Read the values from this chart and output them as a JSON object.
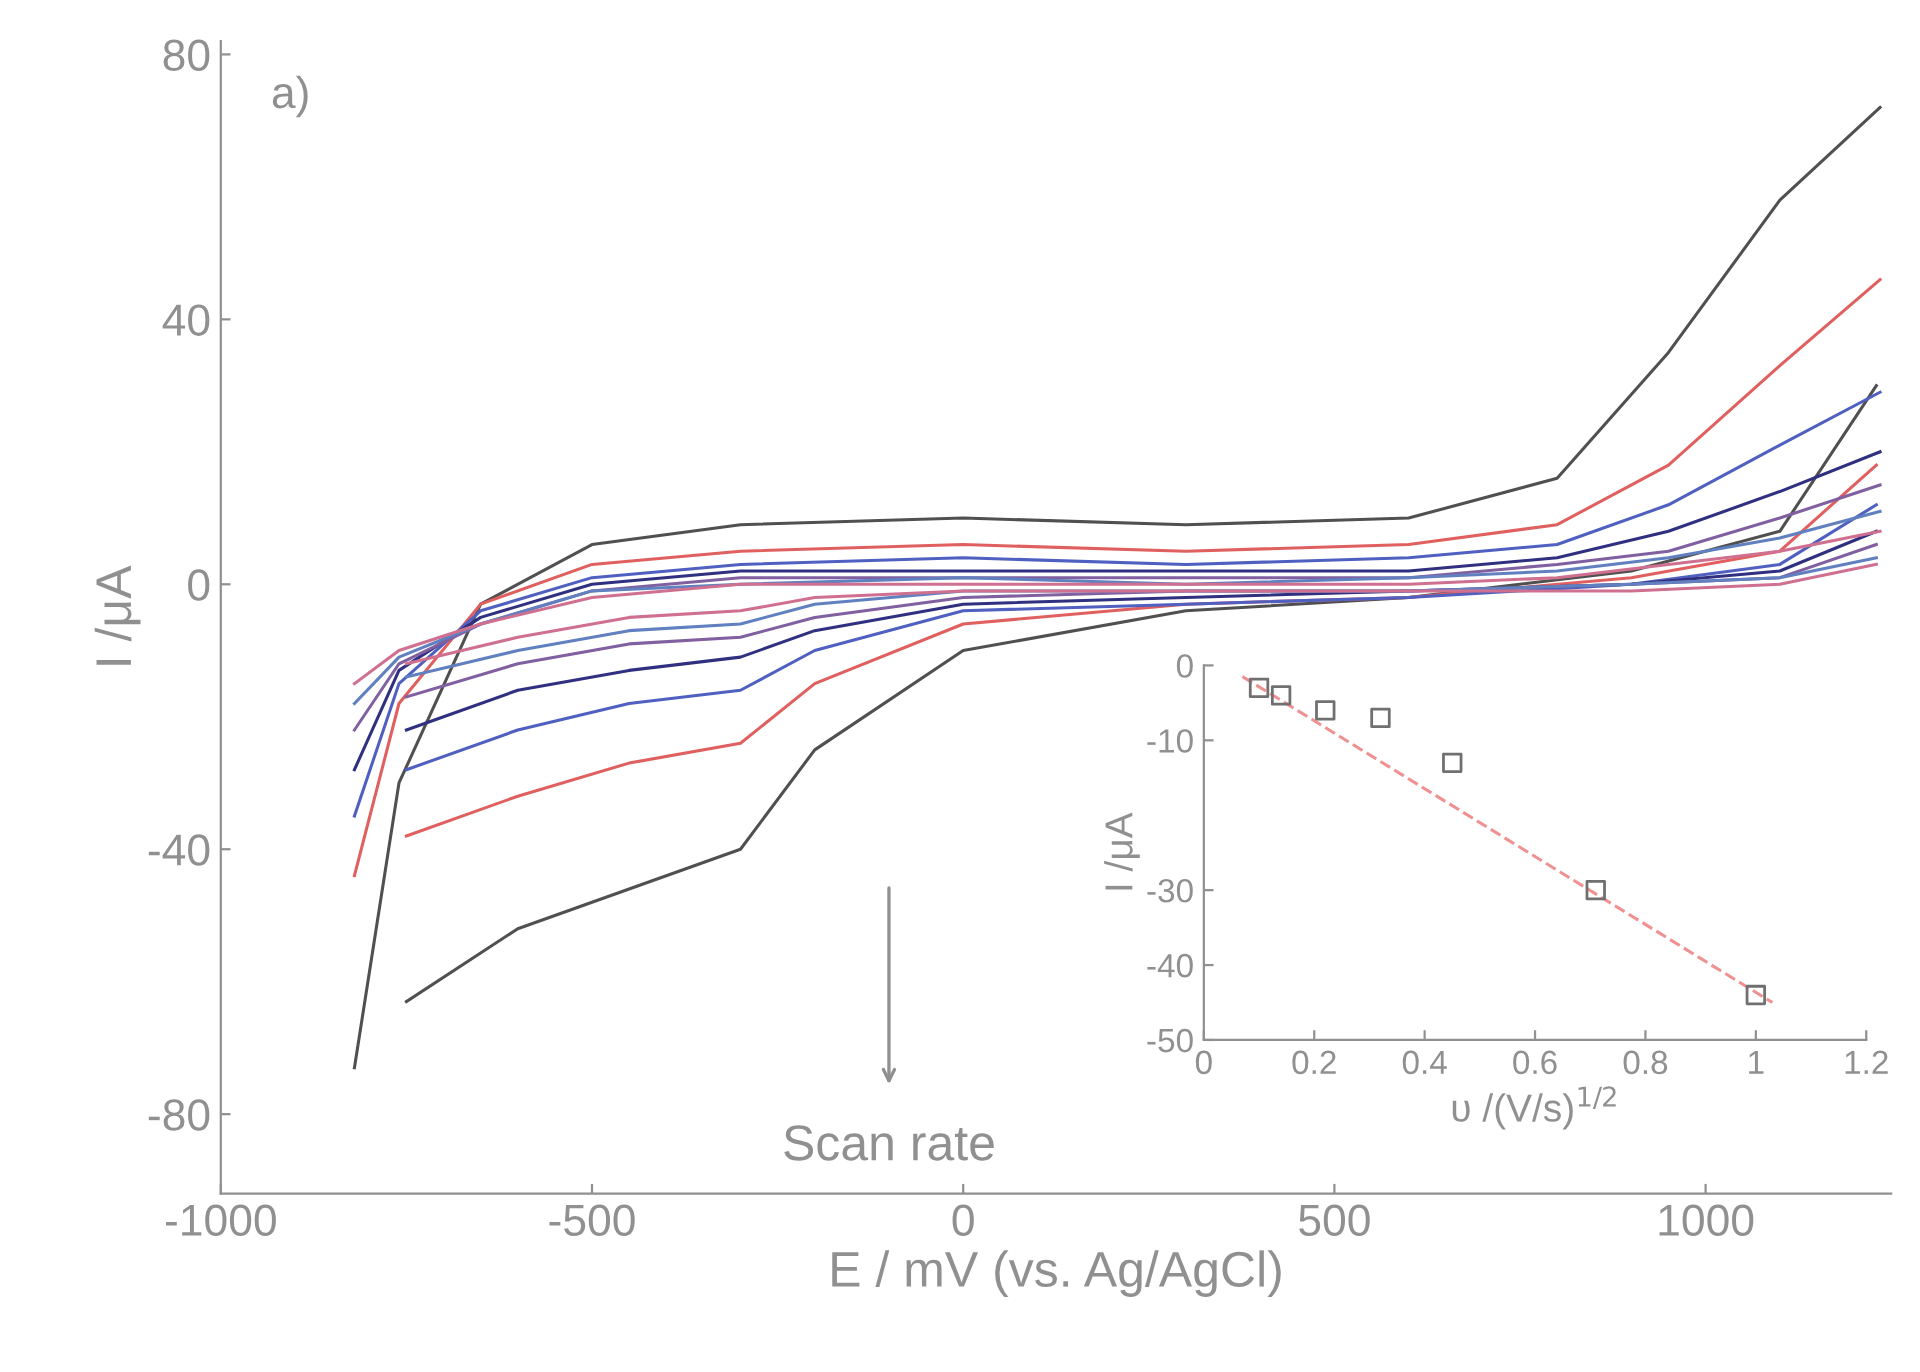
{
  "chart_data": [
    {
      "type": "line",
      "xlabel": "E / mV (vs. Ag/AgCl)",
      "ylabel": "I /μA",
      "series": [
        {
          "color": "#505050",
          "x": [
            -820,
            -760,
            -650,
            -500,
            -300,
            0,
            300,
            600,
            800,
            950,
            1100,
            1235
          ],
          "values": [
            -73,
            -30,
            -3,
            6,
            9,
            10,
            9,
            10,
            16,
            35,
            58,
            72
          ]
        },
        {
          "color": "#505050",
          "x": [
            -750,
            -600,
            -450,
            -300,
            -200,
            0,
            300,
            600,
            900,
            1100,
            1230
          ],
          "values": [
            -63,
            -52,
            -46,
            -40,
            -25,
            -10,
            -4,
            -2,
            2,
            8,
            30
          ]
        },
        {
          "color": "#e06060",
          "x": [
            -820,
            -760,
            -650,
            -500,
            -300,
            0,
            300,
            600,
            800,
            950,
            1100,
            1235
          ],
          "values": [
            -44,
            -18,
            -3,
            3,
            5,
            6,
            5,
            6,
            9,
            18,
            33,
            46
          ]
        },
        {
          "color": "#e06060",
          "x": [
            -750,
            -600,
            -450,
            -300,
            -200,
            0,
            300,
            600,
            900,
            1100,
            1230
          ],
          "values": [
            -38,
            -32,
            -27,
            -24,
            -15,
            -6,
            -3,
            -2,
            1,
            5,
            18
          ]
        },
        {
          "color": "#5060c0",
          "x": [
            -820,
            -760,
            -650,
            -500,
            -300,
            0,
            300,
            600,
            800,
            950,
            1100,
            1235
          ],
          "values": [
            -35,
            -15,
            -4,
            1,
            3,
            4,
            3,
            4,
            6,
            12,
            21,
            29
          ]
        },
        {
          "color": "#5060c0",
          "x": [
            -750,
            -600,
            -450,
            -300,
            -200,
            0,
            300,
            600,
            900,
            1100,
            1230
          ],
          "values": [
            -28,
            -22,
            -18,
            -16,
            -10,
            -4,
            -3,
            -2,
            0,
            3,
            12
          ]
        },
        {
          "color": "#303080",
          "x": [
            -820,
            -760,
            -650,
            -500,
            -300,
            0,
            300,
            600,
            800,
            950,
            1100,
            1235
          ],
          "values": [
            -28,
            -13,
            -5,
            0,
            2,
            2,
            2,
            2,
            4,
            8,
            14,
            20
          ]
        },
        {
          "color": "#303080",
          "x": [
            -750,
            -600,
            -450,
            -300,
            -200,
            0,
            300,
            600,
            900,
            1100,
            1230
          ],
          "values": [
            -22,
            -16,
            -13,
            -11,
            -7,
            -3,
            -2,
            -1,
            0,
            2,
            8
          ]
        },
        {
          "color": "#8060a0",
          "x": [
            -820,
            -760,
            -650,
            -500,
            -300,
            0,
            300,
            600,
            800,
            950,
            1100,
            1235
          ],
          "values": [
            -22,
            -12,
            -6,
            -1,
            1,
            1,
            1,
            1,
            3,
            5,
            10,
            15
          ]
        },
        {
          "color": "#8060a0",
          "x": [
            -750,
            -600,
            -450,
            -300,
            -200,
            0,
            300,
            600,
            900,
            1100,
            1230
          ],
          "values": [
            -17,
            -12,
            -9,
            -8,
            -5,
            -2,
            -1,
            -1,
            0,
            1,
            6
          ]
        },
        {
          "color": "#6080c0",
          "x": [
            -820,
            -760,
            -650,
            -500,
            -300,
            0,
            300,
            600,
            800,
            950,
            1100,
            1235
          ],
          "values": [
            -18,
            -11,
            -6,
            -1,
            0,
            1,
            0,
            1,
            2,
            4,
            7,
            11
          ]
        },
        {
          "color": "#6080c0",
          "x": [
            -750,
            -600,
            -450,
            -300,
            -200,
            0,
            300,
            600,
            900,
            1100,
            1230
          ],
          "values": [
            -14,
            -10,
            -7,
            -6,
            -3,
            -1,
            -1,
            -1,
            0,
            1,
            4
          ]
        },
        {
          "color": "#d07090",
          "x": [
            -820,
            -760,
            -650,
            -500,
            -300,
            0,
            300,
            600,
            800,
            950,
            1100,
            1235
          ],
          "values": [
            -15,
            -10,
            -6,
            -2,
            0,
            0,
            0,
            0,
            1,
            3,
            5,
            8
          ]
        },
        {
          "color": "#d07090",
          "x": [
            -750,
            -600,
            -450,
            -300,
            -200,
            0,
            300,
            600,
            900,
            1100,
            1230
          ],
          "values": [
            -12,
            -8,
            -5,
            -4,
            -2,
            -1,
            -1,
            -1,
            -1,
            0,
            3
          ]
        }
      ],
      "xlim": [
        -1000,
        1250
      ],
      "xticks": [
        -1000,
        -500,
        0,
        500,
        1000
      ],
      "ylim": [
        -92,
        82
      ],
      "yticks": [
        -80,
        -40,
        0,
        40,
        80
      ],
      "annotations": [
        "a)",
        "Scan rate"
      ],
      "grid": false,
      "legend": false
    },
    {
      "type": "scatter",
      "xlabel": "υ /(V/s)$^{1/2}$",
      "ylabel": "I /μA",
      "series": [
        {
          "type": "scatter",
          "color": "#707070",
          "marker": "square",
          "x": [
            0.1,
            0.14,
            0.22,
            0.32,
            0.45,
            0.71,
            1.0
          ],
          "values": [
            -3,
            -4,
            -6,
            -7,
            -13,
            -30,
            -44
          ]
        },
        {
          "type": "line",
          "color": "#f09090",
          "line_style": "dashed",
          "x": [
            0.07,
            1.03
          ],
          "values": [
            -1.5,
            -45
          ]
        }
      ],
      "xlim": [
        0,
        1.2
      ],
      "xticks": [
        0,
        0.2,
        0.4,
        0.6,
        0.8,
        1,
        1.2
      ],
      "ylim": [
        -50,
        0
      ],
      "yticks": [
        0,
        -10,
        -30,
        -40,
        -50
      ],
      "grid": false,
      "legend": false
    }
  ]
}
